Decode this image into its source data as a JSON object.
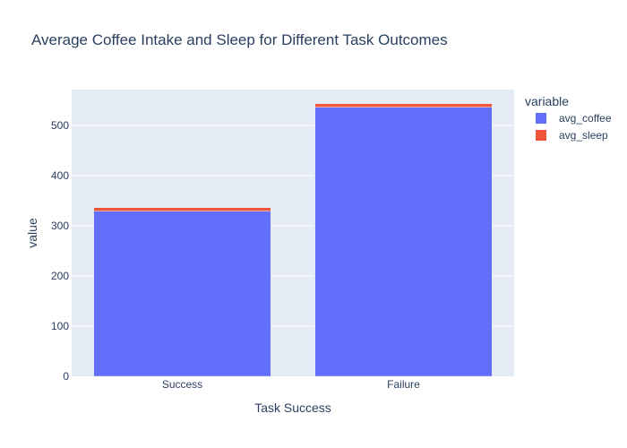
{
  "chart_data": {
    "type": "bar",
    "barmode": "stack",
    "title": "Average Coffee Intake and Sleep for Different Task Outcomes",
    "xlabel": "Task Success",
    "ylabel": "value",
    "categories": [
      "Success",
      "Failure"
    ],
    "series": [
      {
        "name": "avg_coffee",
        "values": [
          329,
          536
        ],
        "color": "#636efa"
      },
      {
        "name": "avg_sleep",
        "values": [
          7,
          7
        ],
        "color": "#ef553b"
      }
    ],
    "ylim": [
      0,
      571
    ],
    "yticks": [
      0,
      100,
      200,
      300,
      400,
      500
    ],
    "grid": true,
    "legend": {
      "title": "variable",
      "position": "right"
    },
    "colors": {
      "plot_bg": "#e5ecf6",
      "grid": "#ffffff",
      "text": "#2a3f5f"
    }
  }
}
